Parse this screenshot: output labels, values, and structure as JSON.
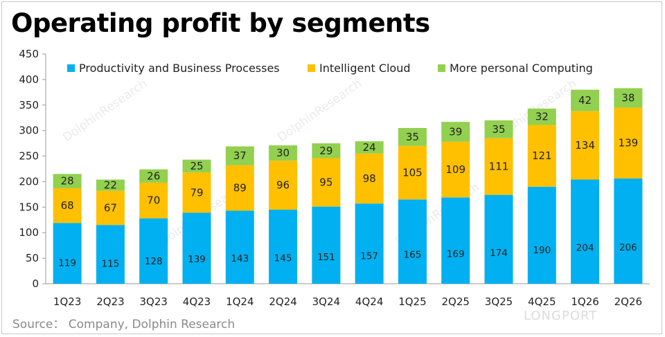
{
  "title": "Operating profit by segments",
  "source": "Source：  Company, Dolphin Research",
  "watermark": "DolphinResearch",
  "logo": "LONGPORT",
  "colors": {
    "productivity": "#00b0f0",
    "cloud": "#ffc000",
    "personal": "#92d050",
    "axis": "#999999"
  },
  "chart_data": {
    "type": "bar",
    "stacked": true,
    "categories": [
      "1Q23",
      "2Q23",
      "3Q23",
      "4Q23",
      "1Q24",
      "2Q24",
      "3Q24",
      "4Q24",
      "1Q25",
      "2Q25",
      "3Q25",
      "4Q25",
      "1Q26",
      "2Q26"
    ],
    "series": [
      {
        "name": "Productivity and Business Processes",
        "values": [
          119,
          115,
          128,
          139,
          143,
          145,
          151,
          157,
          165,
          169,
          174,
          190,
          204,
          206
        ]
      },
      {
        "name": "Intelligent Cloud",
        "values": [
          68,
          67,
          70,
          79,
          89,
          96,
          95,
          98,
          105,
          109,
          111,
          121,
          134,
          139
        ]
      },
      {
        "name": "More personal Computing",
        "values": [
          28,
          22,
          26,
          25,
          37,
          30,
          29,
          24,
          35,
          39,
          35,
          32,
          42,
          38
        ]
      }
    ],
    "ylim": [
      0,
      450
    ],
    "yticks": [
      0,
      50,
      100,
      150,
      200,
      250,
      300,
      350,
      400,
      450
    ],
    "title": "Operating profit by segments",
    "xlabel": "",
    "ylabel": "",
    "legend": "top",
    "grid": false
  }
}
